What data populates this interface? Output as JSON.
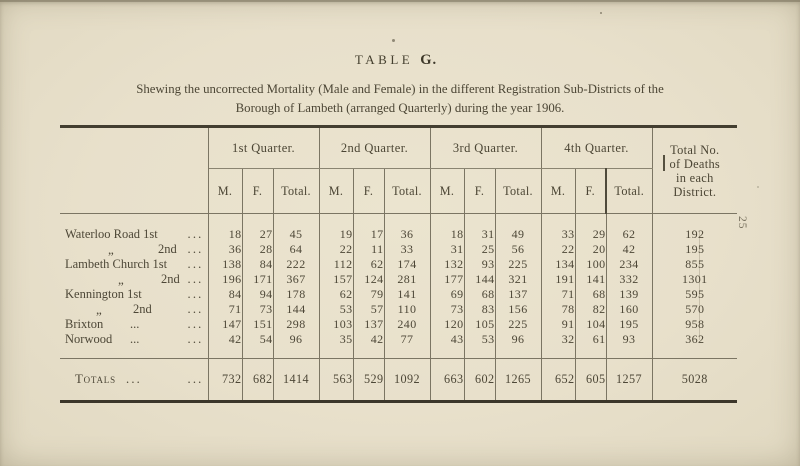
{
  "page": {
    "side_number": "25",
    "title_word": "TABLE",
    "title_letter": "G.",
    "subtitle_line1": "Shewing the uncorrected Mortality (Male and Female) in the different Registration Sub-Districts of the",
    "subtitle_line2": "Borough of Lambeth (arranged Quarterly) during the year 1906."
  },
  "table": {
    "quarter_headers": [
      "1st Quarter.",
      "2nd Quarter.",
      "3rd Quarter.",
      "4th Quarter."
    ],
    "sub_headers": [
      "M.",
      "F.",
      "Total."
    ],
    "total_col_header": [
      "Total No.",
      "of Deaths",
      "in each",
      "District."
    ],
    "rows": [
      {
        "label": {
          "l": "Waterloo Road 1st",
          "dit": "",
          "m": "",
          "d": "..."
        },
        "values": [
          18,
          27,
          45,
          19,
          17,
          36,
          18,
          31,
          49,
          33,
          29,
          62,
          192
        ]
      },
      {
        "label": {
          "l": "",
          "dit": "„",
          "m": "2nd",
          "d": "..."
        },
        "values": [
          36,
          28,
          64,
          22,
          11,
          33,
          31,
          25,
          56,
          22,
          20,
          42,
          195
        ]
      },
      {
        "label": {
          "l": "Lambeth Church 1st",
          "dit": "",
          "m": "",
          "d": "..."
        },
        "values": [
          138,
          84,
          222,
          112,
          62,
          174,
          132,
          93,
          225,
          134,
          100,
          234,
          855
        ]
      },
      {
        "label": {
          "l": "",
          "dit": "„",
          "m": "2nd",
          "d": "..."
        },
        "values": [
          196,
          171,
          367,
          157,
          124,
          281,
          177,
          144,
          321,
          191,
          141,
          332,
          1301
        ]
      },
      {
        "label": {
          "l": "Kennington 1st",
          "dit": "",
          "m": "",
          "d": "..."
        },
        "values": [
          84,
          94,
          178,
          62,
          79,
          141,
          69,
          68,
          137,
          71,
          68,
          139,
          595
        ]
      },
      {
        "label": {
          "l": "",
          "dit": "„",
          "m": "2nd",
          "d": "..."
        },
        "values": [
          71,
          73,
          144,
          53,
          57,
          110,
          73,
          83,
          156,
          78,
          82,
          160,
          570
        ]
      },
      {
        "label": {
          "l": "Brixton",
          "dit": "",
          "m": "...",
          "d": "..."
        },
        "values": [
          147,
          151,
          298,
          103,
          137,
          240,
          120,
          105,
          225,
          91,
          104,
          195,
          958
        ]
      },
      {
        "label": {
          "l": "Norwood",
          "dit": "",
          "m": "...",
          "d": "..."
        },
        "values": [
          42,
          54,
          96,
          35,
          42,
          77,
          43,
          53,
          96,
          32,
          61,
          93,
          362
        ]
      }
    ],
    "totals": {
      "label": "Totals",
      "mid_dots": "...",
      "end_dots": "...",
      "values": [
        732,
        682,
        1414,
        563,
        529,
        1092,
        663,
        602,
        1265,
        652,
        605,
        1257,
        5028
      ]
    }
  }
}
